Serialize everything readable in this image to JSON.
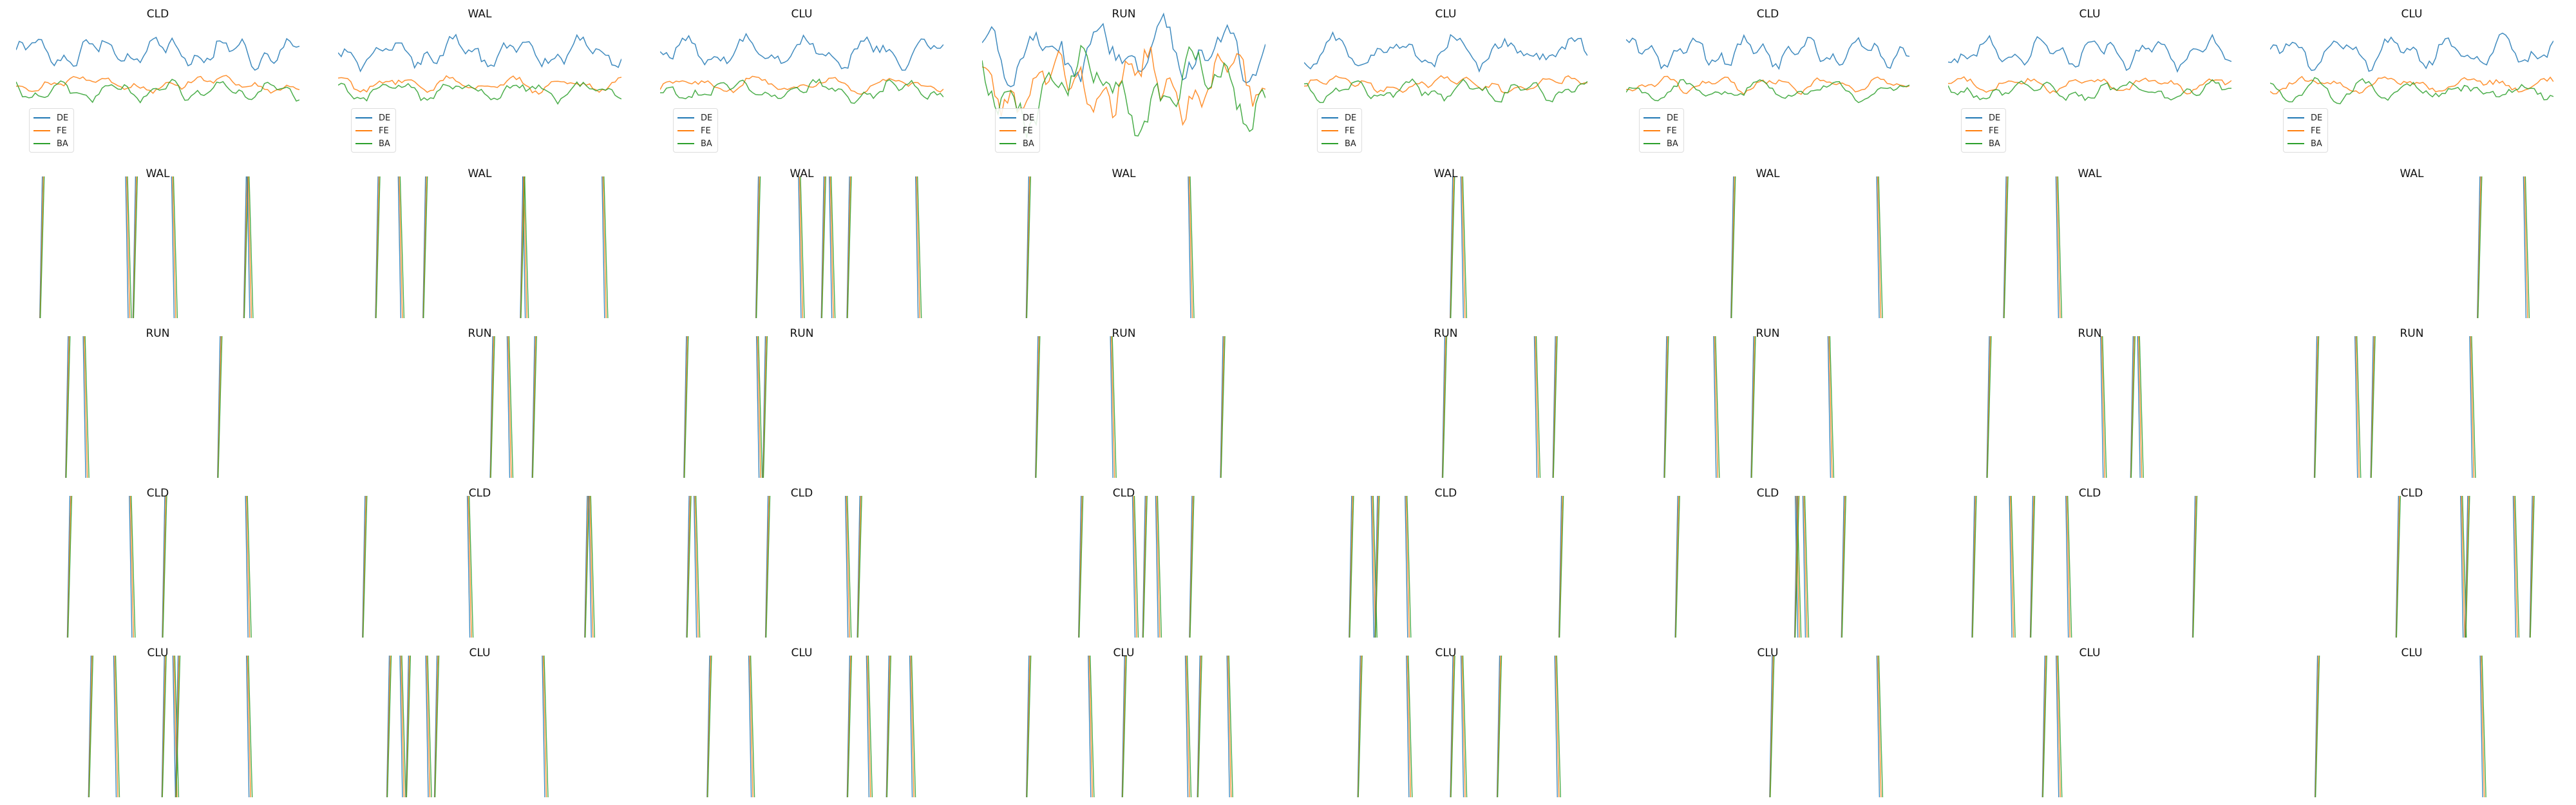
{
  "chart_data": {
    "type": "line",
    "legend_placement": "lower-left (row 1 panels only)",
    "grid": false,
    "axes_visible": false,
    "series_colors": {
      "DE": "#1f77b4",
      "FE": "#ff7f0e",
      "BA": "#2ca02c"
    },
    "legend": [
      "DE",
      "FE",
      "BA"
    ],
    "panels": [
      {
        "title": "CLD",
        "row": 0,
        "col": 0,
        "legend": true
      },
      {
        "title": "WAL",
        "row": 0,
        "col": 1,
        "legend": true
      },
      {
        "title": "CLU",
        "row": 0,
        "col": 2,
        "legend": true
      },
      {
        "title": "RUN",
        "row": 0,
        "col": 3,
        "legend": true
      },
      {
        "title": "CLU",
        "row": 0,
        "col": 4,
        "legend": true
      },
      {
        "title": "CLD",
        "row": 0,
        "col": 5,
        "legend": true
      },
      {
        "title": "CLU",
        "row": 0,
        "col": 6,
        "legend": true
      },
      {
        "title": "CLU",
        "row": 0,
        "col": 7,
        "legend": true
      },
      {
        "title": "WAL",
        "row": 1,
        "col": 0
      },
      {
        "title": "WAL",
        "row": 1,
        "col": 1
      },
      {
        "title": "WAL",
        "row": 1,
        "col": 2
      },
      {
        "title": "WAL",
        "row": 1,
        "col": 3
      },
      {
        "title": "WAL",
        "row": 1,
        "col": 4
      },
      {
        "title": "WAL",
        "row": 1,
        "col": 5
      },
      {
        "title": "WAL",
        "row": 1,
        "col": 6
      },
      {
        "title": "WAL",
        "row": 1,
        "col": 7
      },
      {
        "title": "RUN",
        "row": 2,
        "col": 0
      },
      {
        "title": "RUN",
        "row": 2,
        "col": 1
      },
      {
        "title": "RUN",
        "row": 2,
        "col": 2
      },
      {
        "title": "RUN",
        "row": 2,
        "col": 3
      },
      {
        "title": "RUN",
        "row": 2,
        "col": 4
      },
      {
        "title": "RUN",
        "row": 2,
        "col": 5
      },
      {
        "title": "RUN",
        "row": 2,
        "col": 6
      },
      {
        "title": "RUN",
        "row": 2,
        "col": 7
      },
      {
        "title": "CLD",
        "row": 3,
        "col": 0
      },
      {
        "title": "CLD",
        "row": 3,
        "col": 1
      },
      {
        "title": "CLD",
        "row": 3,
        "col": 2
      },
      {
        "title": "CLD",
        "row": 3,
        "col": 3
      },
      {
        "title": "CLD",
        "row": 3,
        "col": 4
      },
      {
        "title": "CLD",
        "row": 3,
        "col": 5
      },
      {
        "title": "CLD",
        "row": 3,
        "col": 6
      },
      {
        "title": "CLD",
        "row": 3,
        "col": 7
      },
      {
        "title": "CLU",
        "row": 4,
        "col": 0
      },
      {
        "title": "CLU",
        "row": 4,
        "col": 1
      },
      {
        "title": "CLU",
        "row": 4,
        "col": 2
      },
      {
        "title": "CLU",
        "row": 4,
        "col": 3
      },
      {
        "title": "CLU",
        "row": 4,
        "col": 4
      },
      {
        "title": "CLU",
        "row": 4,
        "col": 5
      },
      {
        "title": "CLU",
        "row": 4,
        "col": 6
      },
      {
        "title": "CLU",
        "row": 4,
        "col": 7
      }
    ]
  }
}
